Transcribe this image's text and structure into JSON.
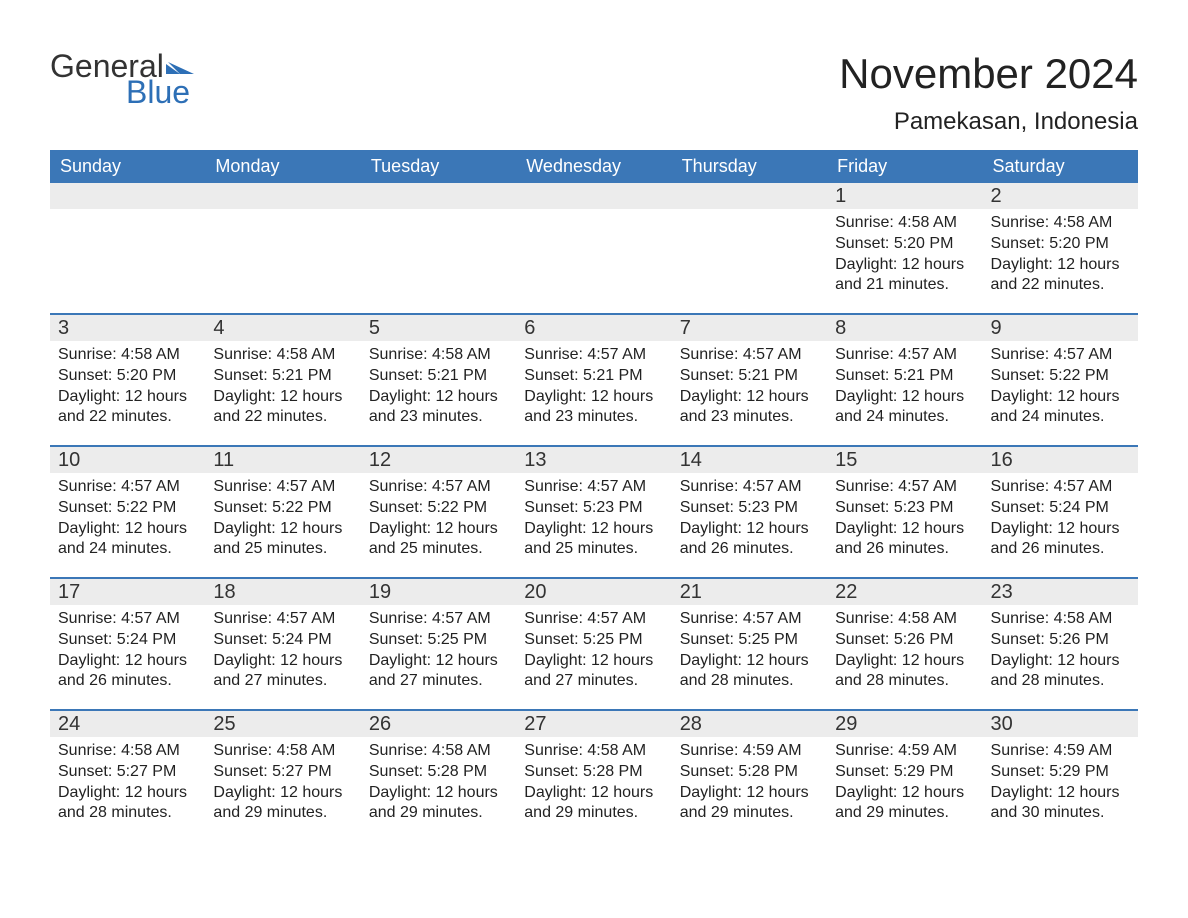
{
  "logo": {
    "text_general": "General",
    "text_blue": "Blue",
    "flag_color": "#2d6fb6"
  },
  "title": "November 2024",
  "location": "Pamekasan, Indonesia",
  "colors": {
    "header_bg": "#3b77b7",
    "header_text": "#ffffff",
    "daynum_bg": "#ececec",
    "border_top": "#3b77b7",
    "body_text": "#222222",
    "logo_blue": "#2d6fb6",
    "logo_gray": "#333333",
    "background": "#ffffff"
  },
  "day_names": [
    "Sunday",
    "Monday",
    "Tuesday",
    "Wednesday",
    "Thursday",
    "Friday",
    "Saturday"
  ],
  "weeks": [
    [
      {
        "empty": true
      },
      {
        "empty": true
      },
      {
        "empty": true
      },
      {
        "empty": true
      },
      {
        "empty": true
      },
      {
        "day": "1",
        "sunrise": "Sunrise: 4:58 AM",
        "sunset": "Sunset: 5:20 PM",
        "daylight1": "Daylight: 12 hours",
        "daylight2": "and 21 minutes."
      },
      {
        "day": "2",
        "sunrise": "Sunrise: 4:58 AM",
        "sunset": "Sunset: 5:20 PM",
        "daylight1": "Daylight: 12 hours",
        "daylight2": "and 22 minutes."
      }
    ],
    [
      {
        "day": "3",
        "sunrise": "Sunrise: 4:58 AM",
        "sunset": "Sunset: 5:20 PM",
        "daylight1": "Daylight: 12 hours",
        "daylight2": "and 22 minutes."
      },
      {
        "day": "4",
        "sunrise": "Sunrise: 4:58 AM",
        "sunset": "Sunset: 5:21 PM",
        "daylight1": "Daylight: 12 hours",
        "daylight2": "and 22 minutes."
      },
      {
        "day": "5",
        "sunrise": "Sunrise: 4:58 AM",
        "sunset": "Sunset: 5:21 PM",
        "daylight1": "Daylight: 12 hours",
        "daylight2": "and 23 minutes."
      },
      {
        "day": "6",
        "sunrise": "Sunrise: 4:57 AM",
        "sunset": "Sunset: 5:21 PM",
        "daylight1": "Daylight: 12 hours",
        "daylight2": "and 23 minutes."
      },
      {
        "day": "7",
        "sunrise": "Sunrise: 4:57 AM",
        "sunset": "Sunset: 5:21 PM",
        "daylight1": "Daylight: 12 hours",
        "daylight2": "and 23 minutes."
      },
      {
        "day": "8",
        "sunrise": "Sunrise: 4:57 AM",
        "sunset": "Sunset: 5:21 PM",
        "daylight1": "Daylight: 12 hours",
        "daylight2": "and 24 minutes."
      },
      {
        "day": "9",
        "sunrise": "Sunrise: 4:57 AM",
        "sunset": "Sunset: 5:22 PM",
        "daylight1": "Daylight: 12 hours",
        "daylight2": "and 24 minutes."
      }
    ],
    [
      {
        "day": "10",
        "sunrise": "Sunrise: 4:57 AM",
        "sunset": "Sunset: 5:22 PM",
        "daylight1": "Daylight: 12 hours",
        "daylight2": "and 24 minutes."
      },
      {
        "day": "11",
        "sunrise": "Sunrise: 4:57 AM",
        "sunset": "Sunset: 5:22 PM",
        "daylight1": "Daylight: 12 hours",
        "daylight2": "and 25 minutes."
      },
      {
        "day": "12",
        "sunrise": "Sunrise: 4:57 AM",
        "sunset": "Sunset: 5:22 PM",
        "daylight1": "Daylight: 12 hours",
        "daylight2": "and 25 minutes."
      },
      {
        "day": "13",
        "sunrise": "Sunrise: 4:57 AM",
        "sunset": "Sunset: 5:23 PM",
        "daylight1": "Daylight: 12 hours",
        "daylight2": "and 25 minutes."
      },
      {
        "day": "14",
        "sunrise": "Sunrise: 4:57 AM",
        "sunset": "Sunset: 5:23 PM",
        "daylight1": "Daylight: 12 hours",
        "daylight2": "and 26 minutes."
      },
      {
        "day": "15",
        "sunrise": "Sunrise: 4:57 AM",
        "sunset": "Sunset: 5:23 PM",
        "daylight1": "Daylight: 12 hours",
        "daylight2": "and 26 minutes."
      },
      {
        "day": "16",
        "sunrise": "Sunrise: 4:57 AM",
        "sunset": "Sunset: 5:24 PM",
        "daylight1": "Daylight: 12 hours",
        "daylight2": "and 26 minutes."
      }
    ],
    [
      {
        "day": "17",
        "sunrise": "Sunrise: 4:57 AM",
        "sunset": "Sunset: 5:24 PM",
        "daylight1": "Daylight: 12 hours",
        "daylight2": "and 26 minutes."
      },
      {
        "day": "18",
        "sunrise": "Sunrise: 4:57 AM",
        "sunset": "Sunset: 5:24 PM",
        "daylight1": "Daylight: 12 hours",
        "daylight2": "and 27 minutes."
      },
      {
        "day": "19",
        "sunrise": "Sunrise: 4:57 AM",
        "sunset": "Sunset: 5:25 PM",
        "daylight1": "Daylight: 12 hours",
        "daylight2": "and 27 minutes."
      },
      {
        "day": "20",
        "sunrise": "Sunrise: 4:57 AM",
        "sunset": "Sunset: 5:25 PM",
        "daylight1": "Daylight: 12 hours",
        "daylight2": "and 27 minutes."
      },
      {
        "day": "21",
        "sunrise": "Sunrise: 4:57 AM",
        "sunset": "Sunset: 5:25 PM",
        "daylight1": "Daylight: 12 hours",
        "daylight2": "and 28 minutes."
      },
      {
        "day": "22",
        "sunrise": "Sunrise: 4:58 AM",
        "sunset": "Sunset: 5:26 PM",
        "daylight1": "Daylight: 12 hours",
        "daylight2": "and 28 minutes."
      },
      {
        "day": "23",
        "sunrise": "Sunrise: 4:58 AM",
        "sunset": "Sunset: 5:26 PM",
        "daylight1": "Daylight: 12 hours",
        "daylight2": "and 28 minutes."
      }
    ],
    [
      {
        "day": "24",
        "sunrise": "Sunrise: 4:58 AM",
        "sunset": "Sunset: 5:27 PM",
        "daylight1": "Daylight: 12 hours",
        "daylight2": "and 28 minutes."
      },
      {
        "day": "25",
        "sunrise": "Sunrise: 4:58 AM",
        "sunset": "Sunset: 5:27 PM",
        "daylight1": "Daylight: 12 hours",
        "daylight2": "and 29 minutes."
      },
      {
        "day": "26",
        "sunrise": "Sunrise: 4:58 AM",
        "sunset": "Sunset: 5:28 PM",
        "daylight1": "Daylight: 12 hours",
        "daylight2": "and 29 minutes."
      },
      {
        "day": "27",
        "sunrise": "Sunrise: 4:58 AM",
        "sunset": "Sunset: 5:28 PM",
        "daylight1": "Daylight: 12 hours",
        "daylight2": "and 29 minutes."
      },
      {
        "day": "28",
        "sunrise": "Sunrise: 4:59 AM",
        "sunset": "Sunset: 5:28 PM",
        "daylight1": "Daylight: 12 hours",
        "daylight2": "and 29 minutes."
      },
      {
        "day": "29",
        "sunrise": "Sunrise: 4:59 AM",
        "sunset": "Sunset: 5:29 PM",
        "daylight1": "Daylight: 12 hours",
        "daylight2": "and 29 minutes."
      },
      {
        "day": "30",
        "sunrise": "Sunrise: 4:59 AM",
        "sunset": "Sunset: 5:29 PM",
        "daylight1": "Daylight: 12 hours",
        "daylight2": "and 30 minutes."
      }
    ]
  ]
}
